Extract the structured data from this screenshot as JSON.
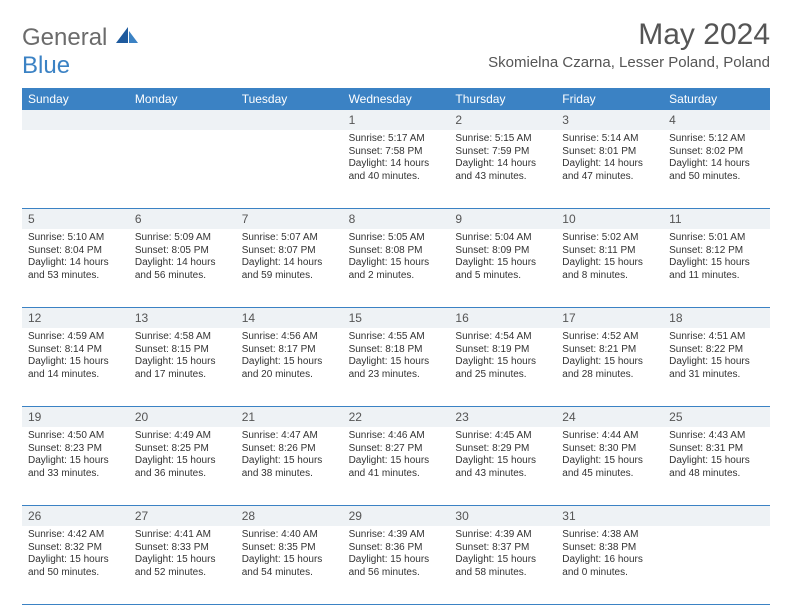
{
  "logo": {
    "textA": "General",
    "textB": "Blue"
  },
  "title": "May 2024",
  "location": "Skomielna Czarna, Lesser Poland, Poland",
  "colors": {
    "accent": "#3b82c4",
    "daynum_bg": "#eef2f5",
    "text": "#333333",
    "muted": "#555555",
    "bg": "#ffffff"
  },
  "day_headers": [
    "Sunday",
    "Monday",
    "Tuesday",
    "Wednesday",
    "Thursday",
    "Friday",
    "Saturday"
  ],
  "weeks": [
    {
      "nums": [
        "",
        "",
        "",
        "1",
        "2",
        "3",
        "4"
      ],
      "cells": [
        null,
        null,
        null,
        {
          "sr": "Sunrise: 5:17 AM",
          "ss": "Sunset: 7:58 PM",
          "dl1": "Daylight: 14 hours",
          "dl2": "and 40 minutes."
        },
        {
          "sr": "Sunrise: 5:15 AM",
          "ss": "Sunset: 7:59 PM",
          "dl1": "Daylight: 14 hours",
          "dl2": "and 43 minutes."
        },
        {
          "sr": "Sunrise: 5:14 AM",
          "ss": "Sunset: 8:01 PM",
          "dl1": "Daylight: 14 hours",
          "dl2": "and 47 minutes."
        },
        {
          "sr": "Sunrise: 5:12 AM",
          "ss": "Sunset: 8:02 PM",
          "dl1": "Daylight: 14 hours",
          "dl2": "and 50 minutes."
        }
      ]
    },
    {
      "nums": [
        "5",
        "6",
        "7",
        "8",
        "9",
        "10",
        "11"
      ],
      "cells": [
        {
          "sr": "Sunrise: 5:10 AM",
          "ss": "Sunset: 8:04 PM",
          "dl1": "Daylight: 14 hours",
          "dl2": "and 53 minutes."
        },
        {
          "sr": "Sunrise: 5:09 AM",
          "ss": "Sunset: 8:05 PM",
          "dl1": "Daylight: 14 hours",
          "dl2": "and 56 minutes."
        },
        {
          "sr": "Sunrise: 5:07 AM",
          "ss": "Sunset: 8:07 PM",
          "dl1": "Daylight: 14 hours",
          "dl2": "and 59 minutes."
        },
        {
          "sr": "Sunrise: 5:05 AM",
          "ss": "Sunset: 8:08 PM",
          "dl1": "Daylight: 15 hours",
          "dl2": "and 2 minutes."
        },
        {
          "sr": "Sunrise: 5:04 AM",
          "ss": "Sunset: 8:09 PM",
          "dl1": "Daylight: 15 hours",
          "dl2": "and 5 minutes."
        },
        {
          "sr": "Sunrise: 5:02 AM",
          "ss": "Sunset: 8:11 PM",
          "dl1": "Daylight: 15 hours",
          "dl2": "and 8 minutes."
        },
        {
          "sr": "Sunrise: 5:01 AM",
          "ss": "Sunset: 8:12 PM",
          "dl1": "Daylight: 15 hours",
          "dl2": "and 11 minutes."
        }
      ]
    },
    {
      "nums": [
        "12",
        "13",
        "14",
        "15",
        "16",
        "17",
        "18"
      ],
      "cells": [
        {
          "sr": "Sunrise: 4:59 AM",
          "ss": "Sunset: 8:14 PM",
          "dl1": "Daylight: 15 hours",
          "dl2": "and 14 minutes."
        },
        {
          "sr": "Sunrise: 4:58 AM",
          "ss": "Sunset: 8:15 PM",
          "dl1": "Daylight: 15 hours",
          "dl2": "and 17 minutes."
        },
        {
          "sr": "Sunrise: 4:56 AM",
          "ss": "Sunset: 8:17 PM",
          "dl1": "Daylight: 15 hours",
          "dl2": "and 20 minutes."
        },
        {
          "sr": "Sunrise: 4:55 AM",
          "ss": "Sunset: 8:18 PM",
          "dl1": "Daylight: 15 hours",
          "dl2": "and 23 minutes."
        },
        {
          "sr": "Sunrise: 4:54 AM",
          "ss": "Sunset: 8:19 PM",
          "dl1": "Daylight: 15 hours",
          "dl2": "and 25 minutes."
        },
        {
          "sr": "Sunrise: 4:52 AM",
          "ss": "Sunset: 8:21 PM",
          "dl1": "Daylight: 15 hours",
          "dl2": "and 28 minutes."
        },
        {
          "sr": "Sunrise: 4:51 AM",
          "ss": "Sunset: 8:22 PM",
          "dl1": "Daylight: 15 hours",
          "dl2": "and 31 minutes."
        }
      ]
    },
    {
      "nums": [
        "19",
        "20",
        "21",
        "22",
        "23",
        "24",
        "25"
      ],
      "cells": [
        {
          "sr": "Sunrise: 4:50 AM",
          "ss": "Sunset: 8:23 PM",
          "dl1": "Daylight: 15 hours",
          "dl2": "and 33 minutes."
        },
        {
          "sr": "Sunrise: 4:49 AM",
          "ss": "Sunset: 8:25 PM",
          "dl1": "Daylight: 15 hours",
          "dl2": "and 36 minutes."
        },
        {
          "sr": "Sunrise: 4:47 AM",
          "ss": "Sunset: 8:26 PM",
          "dl1": "Daylight: 15 hours",
          "dl2": "and 38 minutes."
        },
        {
          "sr": "Sunrise: 4:46 AM",
          "ss": "Sunset: 8:27 PM",
          "dl1": "Daylight: 15 hours",
          "dl2": "and 41 minutes."
        },
        {
          "sr": "Sunrise: 4:45 AM",
          "ss": "Sunset: 8:29 PM",
          "dl1": "Daylight: 15 hours",
          "dl2": "and 43 minutes."
        },
        {
          "sr": "Sunrise: 4:44 AM",
          "ss": "Sunset: 8:30 PM",
          "dl1": "Daylight: 15 hours",
          "dl2": "and 45 minutes."
        },
        {
          "sr": "Sunrise: 4:43 AM",
          "ss": "Sunset: 8:31 PM",
          "dl1": "Daylight: 15 hours",
          "dl2": "and 48 minutes."
        }
      ]
    },
    {
      "nums": [
        "26",
        "27",
        "28",
        "29",
        "30",
        "31",
        ""
      ],
      "cells": [
        {
          "sr": "Sunrise: 4:42 AM",
          "ss": "Sunset: 8:32 PM",
          "dl1": "Daylight: 15 hours",
          "dl2": "and 50 minutes."
        },
        {
          "sr": "Sunrise: 4:41 AM",
          "ss": "Sunset: 8:33 PM",
          "dl1": "Daylight: 15 hours",
          "dl2": "and 52 minutes."
        },
        {
          "sr": "Sunrise: 4:40 AM",
          "ss": "Sunset: 8:35 PM",
          "dl1": "Daylight: 15 hours",
          "dl2": "and 54 minutes."
        },
        {
          "sr": "Sunrise: 4:39 AM",
          "ss": "Sunset: 8:36 PM",
          "dl1": "Daylight: 15 hours",
          "dl2": "and 56 minutes."
        },
        {
          "sr": "Sunrise: 4:39 AM",
          "ss": "Sunset: 8:37 PM",
          "dl1": "Daylight: 15 hours",
          "dl2": "and 58 minutes."
        },
        {
          "sr": "Sunrise: 4:38 AM",
          "ss": "Sunset: 8:38 PM",
          "dl1": "Daylight: 16 hours",
          "dl2": "and 0 minutes."
        },
        null
      ]
    }
  ]
}
